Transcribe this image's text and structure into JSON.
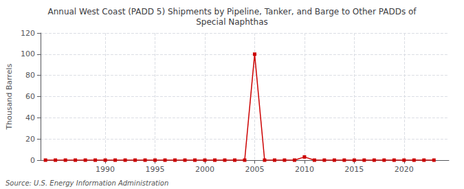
{
  "chart_data": {
    "type": "line",
    "title": "Annual West Coast (PADD 5) Shipments by Pipeline, Tanker, and Barge to Other PADDs of\nSpecial Naphthas",
    "ylabel": "Thousand Barrels",
    "annotation": "Source: U.S. Energy Information Administration",
    "x": [
      1984,
      1985,
      1986,
      1987,
      1988,
      1989,
      1990,
      1991,
      1992,
      1993,
      1994,
      1995,
      1996,
      1997,
      1998,
      1999,
      2000,
      2001,
      2002,
      2003,
      2004,
      2005,
      2006,
      2007,
      2008,
      2009,
      2010,
      2011,
      2012,
      2013,
      2014,
      2015,
      2016,
      2017,
      2018,
      2019,
      2020,
      2021,
      2022,
      2023
    ],
    "values": [
      0,
      0,
      0,
      0,
      0,
      0,
      0,
      0,
      0,
      0,
      0,
      0,
      0,
      0,
      0,
      0,
      0,
      0,
      0,
      0,
      0,
      100,
      0,
      0,
      0,
      0,
      3,
      0,
      0,
      0,
      0,
      0,
      0,
      0,
      0,
      0,
      0,
      0,
      0,
      0
    ],
    "color": "#cc0000",
    "marker": "square",
    "line_style": "solid",
    "xlim": [
      1983.5,
      2024.5
    ],
    "xticks": [
      1990,
      1995,
      2000,
      2005,
      2010,
      2015,
      2020
    ],
    "ylim": [
      0,
      120
    ],
    "yticks": [
      0,
      20,
      40,
      60,
      80,
      100,
      120
    ],
    "grid": true
  }
}
